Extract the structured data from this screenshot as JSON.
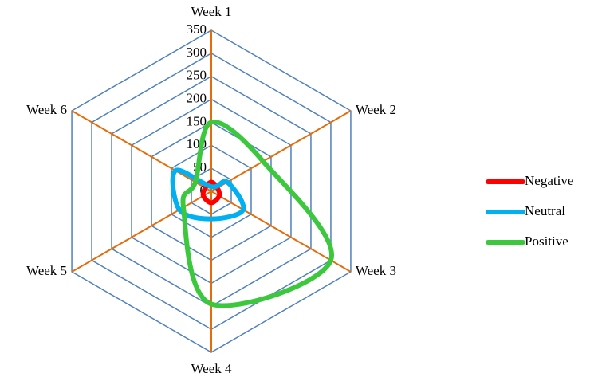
{
  "chart_data": {
    "type": "radar",
    "categories": [
      "Week 1",
      "Week 2",
      "Week 3",
      "Week 4",
      "Week 5",
      "Week 6"
    ],
    "series": [
      {
        "name": "Negative",
        "color": "#ff0000",
        "values": [
          20,
          15,
          20,
          25,
          20,
          15
        ]
      },
      {
        "name": "Neutral",
        "color": "#00b0f0",
        "values": [
          10,
          40,
          80,
          60,
          80,
          90
        ]
      },
      {
        "name": "Positive",
        "color": "#3cc83c",
        "values": [
          150,
          130,
          300,
          245,
          70,
          40
        ]
      }
    ],
    "ylim": [
      0,
      350
    ],
    "yticks": [
      0,
      50,
      100,
      150,
      200,
      250,
      300,
      350
    ],
    "grid": true,
    "legend": "right"
  }
}
